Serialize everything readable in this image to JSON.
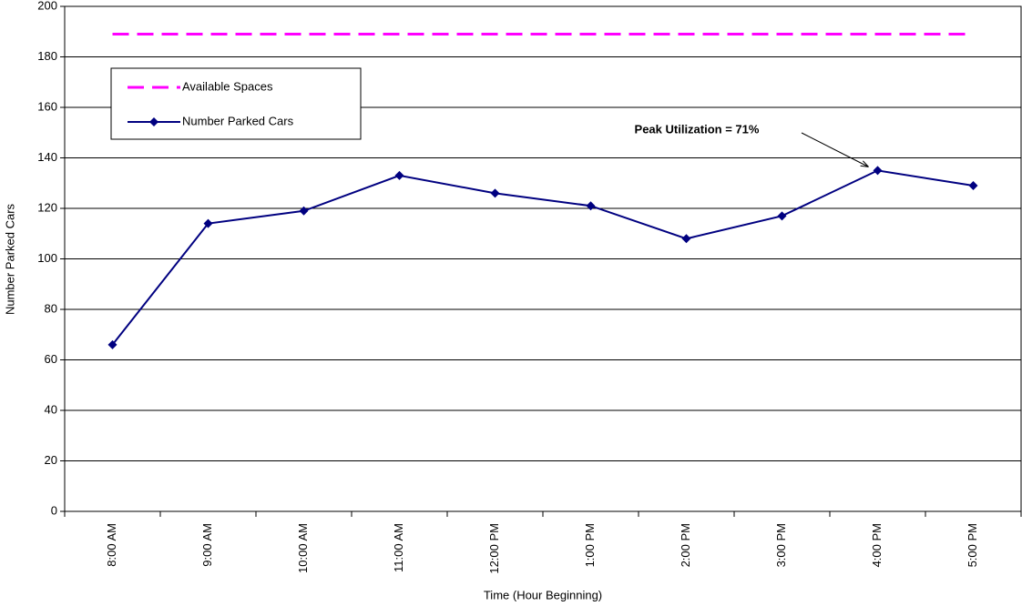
{
  "chart_data": {
    "type": "line",
    "xlabel": "Time (Hour Beginning)",
    "ylabel": "Number Parked Cars",
    "annotation": "Peak Utilization = 71%",
    "categories": [
      "8:00 AM",
      "9:00 AM",
      "10:00 AM",
      "11:00 AM",
      "12:00 PM",
      "1:00 PM",
      "2:00 PM",
      "3:00 PM",
      "4:00 PM",
      "5:00 PM"
    ],
    "series": [
      {
        "name": "Available Spaces",
        "color": "#ff00ff",
        "dashed": true,
        "markers": false,
        "values": [
          189,
          189,
          189,
          189,
          189,
          189,
          189,
          189,
          189,
          189
        ]
      },
      {
        "name": "Number Parked Cars",
        "color": "#000080",
        "dashed": false,
        "markers": true,
        "values": [
          66,
          114,
          119,
          133,
          126,
          121,
          108,
          117,
          135,
          129
        ]
      }
    ],
    "ylim": [
      0,
      200
    ],
    "yticks": [
      0,
      20,
      40,
      60,
      80,
      100,
      120,
      140,
      160,
      180,
      200
    ],
    "grid": true
  }
}
